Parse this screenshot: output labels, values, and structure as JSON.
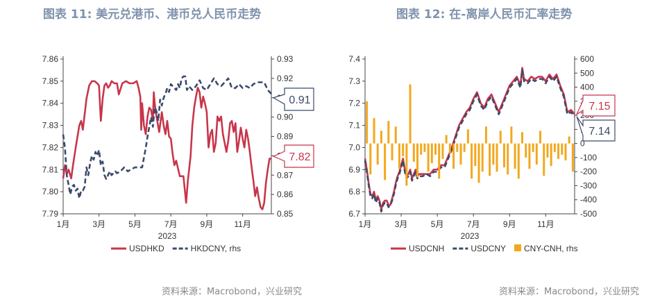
{
  "chart_data": [
    {
      "type": "line",
      "title": "图表 11: 美元兑港币、港币兑人民币走势",
      "source": "资料来源：Macrobond，兴业研究",
      "xlabel": "2023",
      "x_ticks": [
        "1月",
        "3月",
        "5月",
        "7月",
        "9月",
        "11月"
      ],
      "x_tick_months": [
        0,
        2,
        4,
        6,
        8,
        10
      ],
      "x_range": [
        0,
        11.6
      ],
      "ylim": [
        7.79,
        7.86
      ],
      "y_ticks": [
        "7.79",
        "7.80",
        "7.81",
        "7.82",
        "7.83",
        "7.84",
        "7.85",
        "7.86"
      ],
      "y2lim": [
        0.85,
        0.93
      ],
      "y2_ticks": [
        "0.85",
        "0.86",
        "0.87",
        "0.88",
        "0.89",
        "0.90",
        "0.91",
        "0.92",
        "0.93"
      ],
      "series": [
        {
          "name": "USDHKD",
          "axis": "left",
          "style": "solid",
          "color": "#c8354a",
          "x": [
            0.0,
            0.1,
            0.2,
            0.3,
            0.45,
            0.55,
            0.7,
            0.8,
            0.9,
            1.0,
            1.1,
            1.2,
            1.3,
            1.45,
            1.6,
            1.75,
            1.9,
            2.0,
            2.1,
            2.2,
            2.3,
            2.4,
            2.5,
            2.6,
            2.7,
            2.85,
            3.0,
            3.1,
            3.3,
            3.5,
            3.7,
            3.9,
            4.1,
            4.2,
            4.3,
            4.35,
            4.4,
            4.5,
            4.6,
            4.7,
            4.8,
            4.9,
            5.0,
            5.05,
            5.1,
            5.2,
            5.35,
            5.5,
            5.6,
            5.7,
            5.8,
            5.9,
            6.0,
            6.1,
            6.2,
            6.3,
            6.5,
            6.7,
            6.85,
            6.95,
            7.1,
            7.2,
            7.3,
            7.4,
            7.5,
            7.6,
            7.7,
            7.8,
            7.9,
            8.0,
            8.1,
            8.2,
            8.3,
            8.4,
            8.5,
            8.6,
            8.7,
            8.8,
            8.9,
            9.0,
            9.1,
            9.2,
            9.3,
            9.4,
            9.5,
            9.6,
            9.7,
            9.8,
            9.9,
            10.0,
            10.1,
            10.2,
            10.3,
            10.4,
            10.5,
            10.6,
            10.7,
            10.8,
            10.9,
            11.0,
            11.1,
            11.2,
            11.3,
            11.4,
            11.5,
            11.6
          ],
          "values": [
            7.806,
            7.812,
            7.808,
            7.81,
            7.806,
            7.812,
            7.82,
            7.825,
            7.83,
            7.832,
            7.828,
            7.835,
            7.842,
            7.848,
            7.85,
            7.85,
            7.849,
            7.848,
            7.832,
            7.842,
            7.848,
            7.849,
            7.847,
            7.848,
            7.85,
            7.849,
            7.849,
            7.844,
            7.849,
            7.85,
            7.849,
            7.849,
            7.85,
            7.847,
            7.843,
            7.828,
            7.84,
            7.83,
            7.826,
            7.834,
            7.838,
            7.837,
            7.832,
            7.845,
            7.84,
            7.834,
            7.827,
            7.836,
            7.83,
            7.826,
            7.832,
            7.825,
            7.824,
            7.817,
            7.812,
            7.814,
            7.807,
            7.807,
            7.795,
            7.805,
            7.816,
            7.83,
            7.838,
            7.843,
            7.847,
            7.845,
            7.838,
            7.843,
            7.84,
            7.836,
            7.82,
            7.826,
            7.828,
            7.818,
            7.822,
            7.834,
            7.832,
            7.834,
            7.826,
            7.822,
            7.818,
            7.823,
            7.831,
            7.832,
            7.827,
            7.831,
            7.818,
            7.823,
            7.829,
            7.824,
            7.82,
            7.828,
            7.824,
            7.818,
            7.811,
            7.805,
            7.798,
            7.802,
            7.797,
            7.793,
            7.792,
            7.795,
            7.804,
            7.81,
            7.815,
            7.815
          ]
        },
        {
          "name": "HKDCNY, rhs",
          "axis": "right",
          "style": "dashed",
          "color": "#3b4a6b",
          "x": [
            0.0,
            0.1,
            0.2,
            0.3,
            0.4,
            0.5,
            0.6,
            0.7,
            0.8,
            0.9,
            1.0,
            1.1,
            1.2,
            1.3,
            1.4,
            1.5,
            1.6,
            1.7,
            1.8,
            1.9,
            2.0,
            2.1,
            2.2,
            2.3,
            2.4,
            2.5,
            2.6,
            2.7,
            2.8,
            2.9,
            3.0,
            3.2,
            3.4,
            3.6,
            3.8,
            4.0,
            4.2,
            4.4,
            4.5,
            4.6,
            4.7,
            4.8,
            4.9,
            5.0,
            5.1,
            5.2,
            5.3,
            5.4,
            5.5,
            5.6,
            5.7,
            5.8,
            5.9,
            6.0,
            6.1,
            6.2,
            6.3,
            6.4,
            6.5,
            6.6,
            6.7,
            6.8,
            6.9,
            7.0,
            7.2,
            7.4,
            7.6,
            7.8,
            8.0,
            8.2,
            8.4,
            8.6,
            8.8,
            9.0,
            9.2,
            9.4,
            9.6,
            9.8,
            10.0,
            10.2,
            10.4,
            10.6,
            10.8,
            11.0,
            11.2,
            11.4,
            11.6
          ],
          "values": [
            0.891,
            0.884,
            0.87,
            0.865,
            0.86,
            0.864,
            0.865,
            0.862,
            0.863,
            0.858,
            0.862,
            0.862,
            0.864,
            0.874,
            0.87,
            0.876,
            0.88,
            0.878,
            0.882,
            0.88,
            0.883,
            0.875,
            0.877,
            0.87,
            0.868,
            0.87,
            0.872,
            0.87,
            0.871,
            0.872,
            0.871,
            0.872,
            0.874,
            0.872,
            0.873,
            0.874,
            0.874,
            0.874,
            0.879,
            0.884,
            0.89,
            0.895,
            0.9,
            0.895,
            0.905,
            0.903,
            0.898,
            0.909,
            0.906,
            0.91,
            0.912,
            0.915,
            0.913,
            0.917,
            0.916,
            0.915,
            0.914,
            0.917,
            0.915,
            0.92,
            0.921,
            0.921,
            0.914,
            0.916,
            0.914,
            0.916,
            0.919,
            0.915,
            0.914,
            0.917,
            0.92,
            0.917,
            0.916,
            0.918,
            0.92,
            0.915,
            0.915,
            0.917,
            0.915,
            0.916,
            0.915,
            0.917,
            0.918,
            0.918,
            0.918,
            0.914,
            0.912
          ]
        }
      ],
      "callouts": [
        {
          "text": "0.91",
          "axis": "right",
          "value": 0.91,
          "color": "#3b4a6b"
        },
        {
          "text": "7.82",
          "axis": "left",
          "value": 7.816,
          "color": "#c8354a"
        }
      ],
      "legend": [
        "USDHKD",
        "HKDCNY, rhs"
      ],
      "legend_position": "bottom"
    },
    {
      "type": "line+bar",
      "title": "图表 12: 在-离岸人民币汇率走势",
      "source": "资料来源：Macrobond，兴业研究",
      "xlabel": "2023",
      "x_ticks": [
        "1月",
        "3月",
        "5月",
        "7月",
        "9月",
        "11月"
      ],
      "x_tick_months": [
        0,
        2,
        4,
        6,
        8,
        10
      ],
      "x_range": [
        0,
        11.6
      ],
      "ylim": [
        6.7,
        7.4
      ],
      "y_ticks": [
        "6.7",
        "6.8",
        "6.9",
        "7.0",
        "7.1",
        "7.2",
        "7.3",
        "7.4"
      ],
      "y2lim": [
        -500,
        600
      ],
      "y2_ticks": [
        "-500",
        "-400",
        "-300",
        "-200",
        "-100",
        "0",
        "100",
        "200",
        "300",
        "400",
        "500",
        "600"
      ],
      "series": [
        {
          "name": "USDCNH",
          "axis": "left",
          "style": "solid",
          "color": "#c8354a",
          "x": [
            0.0,
            0.1,
            0.2,
            0.3,
            0.4,
            0.5,
            0.6,
            0.7,
            0.8,
            0.9,
            1.0,
            1.1,
            1.2,
            1.3,
            1.4,
            1.5,
            1.6,
            1.7,
            1.8,
            1.9,
            2.0,
            2.1,
            2.2,
            2.3,
            2.4,
            2.5,
            2.6,
            2.7,
            2.8,
            2.9,
            3.0,
            3.2,
            3.4,
            3.6,
            3.8,
            4.0,
            4.2,
            4.4,
            4.6,
            4.8,
            5.0,
            5.2,
            5.4,
            5.6,
            5.8,
            6.0,
            6.2,
            6.4,
            6.6,
            6.8,
            7.0,
            7.2,
            7.4,
            7.6,
            7.8,
            8.0,
            8.2,
            8.4,
            8.6,
            8.7,
            8.8,
            9.0,
            9.2,
            9.4,
            9.6,
            9.8,
            10.0,
            10.2,
            10.4,
            10.6,
            10.8,
            11.0,
            11.2,
            11.4,
            11.6
          ],
          "values": [
            6.95,
            6.9,
            6.84,
            6.79,
            6.78,
            6.8,
            6.76,
            6.78,
            6.76,
            6.72,
            6.75,
            6.76,
            6.76,
            6.74,
            6.74,
            6.77,
            6.8,
            6.84,
            6.87,
            6.89,
            6.92,
            6.95,
            6.9,
            6.87,
            6.88,
            6.9,
            6.86,
            6.88,
            6.9,
            6.87,
            6.88,
            6.88,
            6.88,
            6.88,
            6.9,
            6.9,
            6.92,
            6.92,
            6.96,
            7.0,
            7.05,
            7.1,
            7.13,
            7.16,
            7.18,
            7.22,
            7.25,
            7.2,
            7.18,
            7.22,
            7.24,
            7.2,
            7.16,
            7.2,
            7.24,
            7.28,
            7.3,
            7.32,
            7.28,
            7.36,
            7.31,
            7.3,
            7.32,
            7.31,
            7.32,
            7.32,
            7.3,
            7.33,
            7.31,
            7.33,
            7.28,
            7.24,
            7.16,
            7.17,
            7.15
          ]
        },
        {
          "name": "USDCNY",
          "axis": "left",
          "style": "dashed",
          "color": "#3b4a6b",
          "x": [
            0.0,
            0.1,
            0.2,
            0.3,
            0.4,
            0.5,
            0.6,
            0.7,
            0.8,
            0.9,
            1.0,
            1.1,
            1.2,
            1.3,
            1.4,
            1.5,
            1.6,
            1.7,
            1.8,
            1.9,
            2.0,
            2.1,
            2.2,
            2.3,
            2.4,
            2.5,
            2.6,
            2.7,
            2.8,
            2.9,
            3.0,
            3.2,
            3.4,
            3.6,
            3.8,
            4.0,
            4.2,
            4.4,
            4.6,
            4.8,
            5.0,
            5.2,
            5.4,
            5.6,
            5.8,
            6.0,
            6.2,
            6.4,
            6.6,
            6.8,
            7.0,
            7.2,
            7.4,
            7.6,
            7.8,
            8.0,
            8.2,
            8.4,
            8.6,
            8.7,
            8.8,
            9.0,
            9.2,
            9.4,
            9.6,
            9.8,
            10.0,
            10.2,
            10.4,
            10.6,
            10.8,
            11.0,
            11.2,
            11.4,
            11.6
          ],
          "values": [
            6.94,
            6.89,
            6.83,
            6.78,
            6.77,
            6.79,
            6.75,
            6.77,
            6.75,
            6.71,
            6.74,
            6.75,
            6.75,
            6.73,
            6.74,
            6.76,
            6.79,
            6.83,
            6.86,
            6.88,
            6.91,
            6.94,
            6.89,
            6.86,
            6.87,
            6.89,
            6.85,
            6.87,
            6.89,
            6.86,
            6.87,
            6.87,
            6.88,
            6.87,
            6.89,
            6.89,
            6.91,
            6.91,
            6.95,
            6.99,
            7.04,
            7.09,
            7.12,
            7.15,
            7.17,
            7.21,
            7.24,
            7.19,
            7.17,
            7.21,
            7.23,
            7.19,
            7.15,
            7.19,
            7.23,
            7.27,
            7.29,
            7.31,
            7.27,
            7.35,
            7.3,
            7.29,
            7.31,
            7.3,
            7.31,
            7.31,
            7.29,
            7.32,
            7.3,
            7.32,
            7.27,
            7.23,
            7.15,
            7.16,
            7.14
          ]
        },
        {
          "name": "CNY-CNH, rhs",
          "axis": "right",
          "style": "bar",
          "color": "#f2a81d",
          "x": [
            0.1,
            0.3,
            0.5,
            0.7,
            0.9,
            1.1,
            1.3,
            1.5,
            1.7,
            1.9,
            2.1,
            2.3,
            2.5,
            2.7,
            2.9,
            3.1,
            3.3,
            3.5,
            3.7,
            3.9,
            4.1,
            4.3,
            4.5,
            4.7,
            4.9,
            5.1,
            5.3,
            5.5,
            5.7,
            5.9,
            6.1,
            6.3,
            6.5,
            6.7,
            6.9,
            7.1,
            7.3,
            7.5,
            7.7,
            7.9,
            8.1,
            8.3,
            8.5,
            8.7,
            8.9,
            9.1,
            9.3,
            9.5,
            9.7,
            9.9,
            10.1,
            10.3,
            10.5,
            10.7,
            10.9,
            11.1,
            11.3,
            11.5
          ],
          "values": [
            300,
            -220,
            180,
            -150,
            90,
            -260,
            160,
            -120,
            120,
            -180,
            -90,
            -300,
            420,
            -130,
            -240,
            -80,
            -60,
            -200,
            -140,
            -80,
            -250,
            -110,
            60,
            -70,
            -180,
            -60,
            -150,
            -60,
            100,
            -250,
            -160,
            -280,
            -200,
            120,
            -230,
            -150,
            -200,
            90,
            -170,
            -220,
            120,
            -180,
            -250,
            80,
            -100,
            -180,
            -60,
            -150,
            90,
            -230,
            -100,
            -160,
            -60,
            -110,
            -80,
            -120,
            50,
            -200
          ],
          "label": "bars from 0 (rhs scale)"
        }
      ],
      "callouts": [
        {
          "text": "7.15",
          "axis": "left",
          "value": 7.15,
          "color": "#c8354a"
        },
        {
          "text": "7.14",
          "axis": "left",
          "value": 7.14,
          "color": "#3b4a6b"
        }
      ],
      "legend": [
        "USDCNH",
        "USDCNY",
        "CNY-CNH, rhs"
      ],
      "legend_position": "bottom"
    }
  ]
}
